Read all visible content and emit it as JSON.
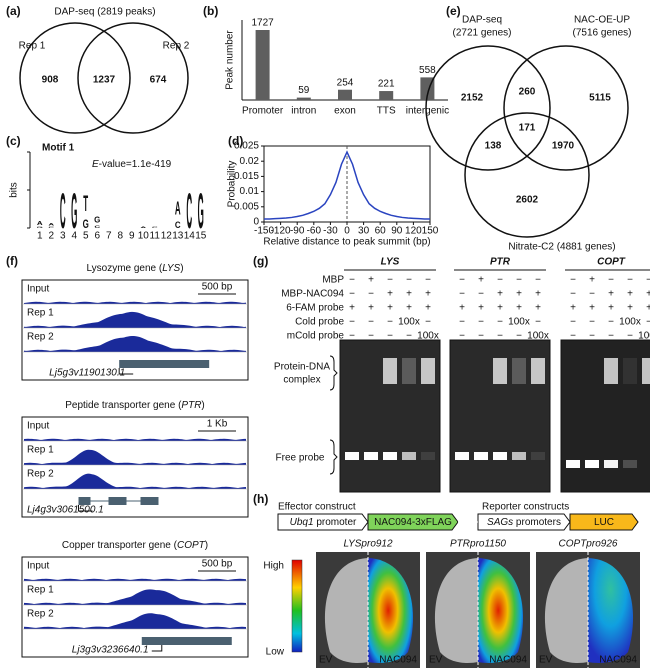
{
  "panels": {
    "a": {
      "label": "(a)",
      "title": "DAP-seq (2819 peaks)",
      "sets": [
        "Rep 1",
        "Rep 2"
      ],
      "counts": [
        908,
        1237,
        674
      ]
    },
    "b": {
      "label": "(b)",
      "type": "bar",
      "y_label": "Peak number",
      "categories": [
        "Promoter",
        "intron",
        "exon",
        "TTS",
        "intergenic"
      ],
      "values": [
        1727,
        59,
        254,
        221,
        558
      ],
      "color": "#5f5f5f"
    },
    "c": {
      "label": "(c)",
      "motif": "Motif 1",
      "evalue": [
        "E",
        "-value=1.1e-419"
      ],
      "y_label": "bits",
      "ylim": [
        0,
        2
      ],
      "yticks": [
        0,
        1,
        2
      ],
      "positions": [
        1,
        2,
        3,
        4,
        5,
        6,
        7,
        8,
        9,
        10,
        11,
        12,
        13,
        14,
        15
      ],
      "colors": {
        "A": "#1a9a2a",
        "C": "#2f3fc8",
        "G": "#f0a000",
        "T": "#d02020"
      },
      "logo": [
        {
          "pos": 1,
          "letters": [
            "G",
            "A"
          ],
          "bits": [
            0.08,
            0.22
          ]
        },
        {
          "pos": 2,
          "letters": [
            "C",
            "A"
          ],
          "bits": [
            0.06,
            0.12
          ]
        },
        {
          "pos": 3,
          "letters": [
            "C"
          ],
          "bits": [
            1.9
          ]
        },
        {
          "pos": 4,
          "letters": [
            "G"
          ],
          "bits": [
            1.9
          ]
        },
        {
          "pos": 5,
          "letters": [
            "G",
            "T"
          ],
          "bits": [
            0.45,
            0.85
          ]
        },
        {
          "pos": 6,
          "letters": [
            "C",
            "G"
          ],
          "bits": [
            0.15,
            0.3
          ]
        },
        {
          "pos": 10,
          "letters": [
            "A"
          ],
          "bits": [
            0.08
          ]
        },
        {
          "pos": 11,
          "letters": [
            "C"
          ],
          "bits": [
            0.08
          ]
        },
        {
          "pos": 13,
          "letters": [
            "C",
            "A"
          ],
          "bits": [
            0.35,
            0.7
          ]
        },
        {
          "pos": 14,
          "letters": [
            "C"
          ],
          "bits": [
            1.9
          ]
        },
        {
          "pos": 15,
          "letters": [
            "G"
          ],
          "bits": [
            1.9
          ]
        }
      ]
    },
    "d": {
      "label": "(d)",
      "type": "line",
      "x_label": "Relative distance to peak summit (bp)",
      "y_label": "Probability",
      "color": "#2a44c0",
      "x": [
        -150,
        -140,
        -130,
        -120,
        -110,
        -100,
        -90,
        -80,
        -70,
        -60,
        -50,
        -40,
        -30,
        -20,
        -10,
        0,
        10,
        20,
        30,
        40,
        50,
        60,
        70,
        80,
        90,
        100,
        110,
        120,
        130,
        140,
        150
      ],
      "values": [
        0.001,
        0.001,
        0.0011,
        0.0012,
        0.0013,
        0.0015,
        0.0018,
        0.0022,
        0.0028,
        0.0035,
        0.0045,
        0.006,
        0.009,
        0.013,
        0.019,
        0.023,
        0.019,
        0.013,
        0.009,
        0.006,
        0.0045,
        0.0035,
        0.0028,
        0.0022,
        0.0018,
        0.0015,
        0.0013,
        0.0012,
        0.0011,
        0.001,
        0.001
      ],
      "xlim": [
        -150,
        150
      ],
      "ylim": [
        0,
        0.025
      ],
      "xticks": [
        -150,
        -120,
        -90,
        -60,
        -30,
        0,
        30,
        60,
        90,
        120,
        150
      ],
      "yticks": [
        0,
        0.005,
        0.01,
        0.015,
        0.02,
        0.025
      ]
    },
    "e": {
      "label": "(e)",
      "set_labels": [
        [
          "DAP-seq",
          "(2721 genes)"
        ],
        [
          "NAC-OE-UP",
          "(7516 genes)"
        ],
        [
          "Nitrate-C2 (4881 genes)"
        ]
      ],
      "counts": [
        2152,
        260,
        5115,
        171,
        138,
        1970,
        2602
      ]
    },
    "f": {
      "label": "(f)",
      "tracks": [
        "Input",
        "Rep 1",
        "Rep 2"
      ],
      "loci": [
        {
          "title": [
            "Lysozyme gene (",
            "LYS",
            ")"
          ],
          "scale": "500 bp",
          "gene_id": "Lj5g3v1190130.1"
        },
        {
          "title": [
            "Peptide transporter gene (",
            "PTR",
            ")"
          ],
          "scale": "1 Kb",
          "gene_id": "Lj4g3v3061500.1"
        },
        {
          "title": [
            "Copper transporter gene (",
            "COPT",
            ")"
          ],
          "scale": "500 bp",
          "gene_id": "Lj3g3v3236640.1"
        }
      ]
    },
    "g": {
      "label": "(g)",
      "genes": [
        "LYS",
        "PTR",
        "COPT"
      ],
      "rows": [
        {
          "name": "MBP",
          "lanes": [
            "−",
            "+",
            "−",
            "−",
            "−"
          ]
        },
        {
          "name": "MBP-NAC094",
          "lanes": [
            "−",
            "−",
            "+",
            "+",
            "+"
          ]
        },
        {
          "name": "6-FAM probe",
          "lanes": [
            "+",
            "+",
            "+",
            "+",
            "+"
          ]
        },
        {
          "name": "Cold probe",
          "lanes": [
            "−",
            "−",
            "−",
            "100x",
            "−"
          ]
        },
        {
          "name": "mCold probe",
          "lanes": [
            "−",
            "−",
            "−",
            "−",
            "100x"
          ]
        }
      ],
      "complex": [
        "Protein-DNA",
        "complex"
      ],
      "free": "Free probe"
    },
    "h": {
      "label": "(h)",
      "effector": "Effector construct",
      "reporter": "Reporter constructs",
      "boxes": [
        [
          "Ubq1",
          " promoter"
        ],
        [
          "NAC094-3xFLAG"
        ],
        [
          "SAGs",
          " promoters"
        ],
        [
          "LUC"
        ]
      ],
      "leaves": [
        "LYSpro912",
        "PTRpro1150",
        "COPTpro926"
      ],
      "left": "EV",
      "right": "NAC094",
      "scale": [
        "High",
        "Low"
      ]
    }
  }
}
